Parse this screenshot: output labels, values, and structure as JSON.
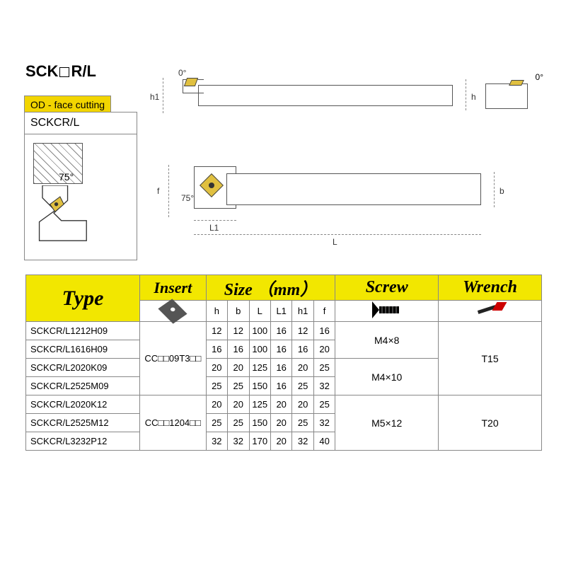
{
  "title_prefix": "SCK",
  "title_suffix": "R/L",
  "badge": "OD - face cutting",
  "badge_sub": "SCKCR/L",
  "geom_angle": "75°",
  "drawing": {
    "zero_left": "0°",
    "h1": "h1",
    "h": "h",
    "f": "f",
    "ang75": "75°",
    "L1": "L1",
    "L": "L",
    "b": "b",
    "zero_right": "0°"
  },
  "table": {
    "headers": {
      "type": "Type",
      "insert": "Insert",
      "size": "Size （mm）",
      "screw": "Screw",
      "wrench": "Wrench"
    },
    "size_cols": [
      "h",
      "b",
      "L",
      "L1",
      "h1",
      "f"
    ],
    "rows": [
      {
        "type": "SCKCR/L1212H09",
        "h": "12",
        "b": "12",
        "L": "100",
        "L1": "16",
        "h1": "12",
        "f": "16"
      },
      {
        "type": "SCKCR/L1616H09",
        "h": "16",
        "b": "16",
        "L": "100",
        "L1": "16",
        "h1": "16",
        "f": "20"
      },
      {
        "type": "SCKCR/L2020K09",
        "h": "20",
        "b": "20",
        "L": "125",
        "L1": "16",
        "h1": "20",
        "f": "25"
      },
      {
        "type": "SCKCR/L2525M09",
        "h": "25",
        "b": "25",
        "L": "150",
        "L1": "16",
        "h1": "25",
        "f": "32"
      },
      {
        "type": "SCKCR/L2020K12",
        "h": "20",
        "b": "20",
        "L": "125",
        "L1": "20",
        "h1": "20",
        "f": "25"
      },
      {
        "type": "SCKCR/L2525M12",
        "h": "25",
        "b": "25",
        "L": "150",
        "L1": "20",
        "h1": "25",
        "f": "32"
      },
      {
        "type": "SCKCR/L3232P12",
        "h": "32",
        "b": "32",
        "L": "170",
        "L1": "20",
        "h1": "32",
        "f": "40"
      }
    ],
    "insert_groups": [
      {
        "label": "CC□□09T3□□",
        "span": 4
      },
      {
        "label": "CC□□1204□□",
        "span": 3
      }
    ],
    "screw_groups": [
      {
        "label": "M4×8",
        "span": 2
      },
      {
        "label": "M4×10",
        "span": 2
      },
      {
        "label": "M5×12",
        "span": 3
      }
    ],
    "wrench_groups": [
      {
        "label": "T15",
        "span": 4
      },
      {
        "label": "T20",
        "span": 3
      }
    ]
  },
  "colors": {
    "header_bg": "#f2e700",
    "badge_bg": "#f2d500",
    "insert_fill": "#e0c040",
    "wrench_flag": "#cc0000",
    "line": "#888"
  }
}
